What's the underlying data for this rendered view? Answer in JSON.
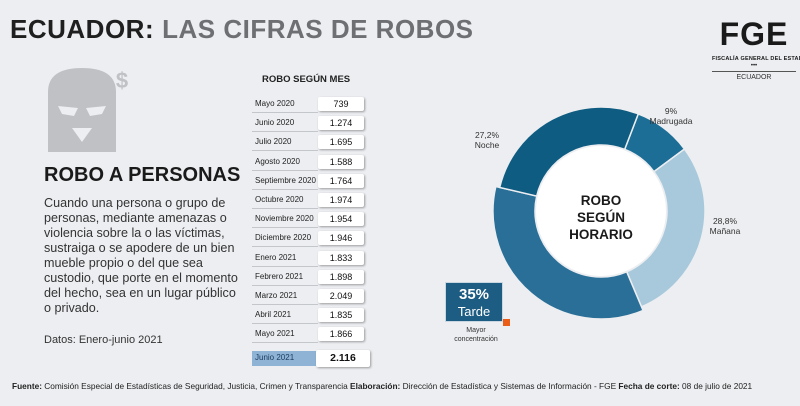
{
  "header": {
    "title_main": "ECUADOR:",
    "title_rest": "LAS CIFRAS  DE ROBOS"
  },
  "logo": {
    "name": "FGE",
    "subtitle": "FISCALÍA GENERAL DEL ESTADO",
    "dots": "•••",
    "country": "ECUADOR",
    "icon": "fge-logo"
  },
  "left": {
    "icon": "masked-robber-icon",
    "dollar": "$",
    "section_title": "ROBO A PERSONAS",
    "description": "Cuando una persona o grupo de personas, mediante amenazas o violencia sobre la o las víctimas, sustraiga o se apodere de un bien mueble propio o del que sea custodio, que porte en el momento del hecho, sea en un lugar público o privado.",
    "datos": "Datos: Enero-junio 2021"
  },
  "colors": {
    "madrugada": "#1d6e96",
    "manana": "#a7c9db",
    "tarde": "#2a6f97",
    "noche": "#0f5c82",
    "highlight": "#8fb3d4",
    "orange": "#e95d16"
  },
  "chart_data": [
    {
      "type": "table",
      "title": "ROBO SEGÚN MES",
      "categories": [
        "Mayo 2020",
        "Junio 2020",
        "Julio  2020",
        "Agosto 2020",
        "Septiembre 2020",
        "Octubre 2020",
        "Noviembre 2020",
        "Diciembre 2020",
        "Enero 2021",
        "Febrero 2021",
        "Marzo 2021",
        "Abril 2021",
        "Mayo 2021",
        "Junio 2021"
      ],
      "values": [
        "739",
        "1.274",
        "1.695",
        "1.588",
        "1.764",
        "1.974",
        "1.954",
        "1.946",
        "1.833",
        "1.898",
        "2.049",
        "1.835",
        "1.866",
        "2.116"
      ],
      "highlight_index": 13
    },
    {
      "type": "pie",
      "title": "ROBO SEGÚN HORARIO",
      "title_lines": [
        "ROBO",
        "SEGÚN",
        "HORARIO"
      ],
      "slices": [
        {
          "name": "Madrugada",
          "value": 9,
          "label": "9%"
        },
        {
          "name": "Mañana",
          "value": 28.8,
          "label": "28,8%"
        },
        {
          "name": "Tarde",
          "value": 35,
          "label": "35%"
        },
        {
          "name": "Noche",
          "value": 27.2,
          "label": "27,2%"
        }
      ],
      "highlight": {
        "name": "Tarde",
        "pct": "35%",
        "note": "Mayor concentración"
      }
    }
  ],
  "footer": {
    "fuente_label": "Fuente:",
    "fuente_text": " Comisión Especial de Estadísticas de Seguridad, Justicia, Crimen y Transparencia ",
    "elab_label": "Elaboración:",
    "elab_text": " Dirección de Estadística y Sistemas de Información - FGE ",
    "fecha_label": "Fecha de corte:",
    "fecha_text": " 08 de julio de 2021"
  }
}
